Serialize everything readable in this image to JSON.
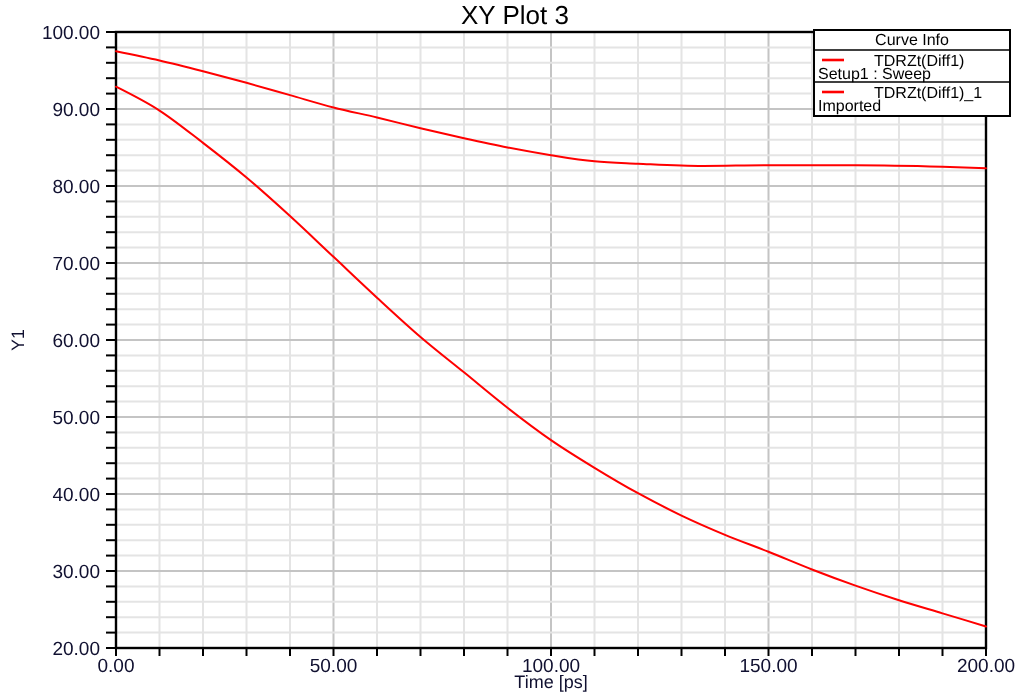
{
  "chart_data": {
    "type": "line",
    "title": "XY Plot 3",
    "xlabel": "Time [ps]",
    "ylabel": "Y1",
    "legend_title": "Curve Info",
    "legend": "top right",
    "grid": true,
    "line_style": "solid",
    "xlim": [
      0,
      200
    ],
    "ylim": [
      20,
      100
    ],
    "xticks": [
      {
        "value": 0,
        "label": "0.00"
      },
      {
        "value": 10,
        "label": null
      },
      {
        "value": 20,
        "label": null
      },
      {
        "value": 30,
        "label": null
      },
      {
        "value": 40,
        "label": null
      },
      {
        "value": 50,
        "label": "50.00"
      },
      {
        "value": 60,
        "label": null
      },
      {
        "value": 70,
        "label": null
      },
      {
        "value": 80,
        "label": null
      },
      {
        "value": 90,
        "label": null
      },
      {
        "value": 100,
        "label": "100.00"
      },
      {
        "value": 110,
        "label": null
      },
      {
        "value": 120,
        "label": null
      },
      {
        "value": 130,
        "label": null
      },
      {
        "value": 140,
        "label": null
      },
      {
        "value": 150,
        "label": "150.00"
      },
      {
        "value": 160,
        "label": null
      },
      {
        "value": 170,
        "label": null
      },
      {
        "value": 180,
        "label": null
      },
      {
        "value": 190,
        "label": null
      },
      {
        "value": 200,
        "label": "200.00"
      }
    ],
    "yticks": [
      {
        "value": 20,
        "label": "20.00"
      },
      {
        "value": 22,
        "label": null
      },
      {
        "value": 24,
        "label": null
      },
      {
        "value": 26,
        "label": null
      },
      {
        "value": 28,
        "label": null
      },
      {
        "value": 30,
        "label": "30.00"
      },
      {
        "value": 32,
        "label": null
      },
      {
        "value": 34,
        "label": null
      },
      {
        "value": 36,
        "label": null
      },
      {
        "value": 38,
        "label": null
      },
      {
        "value": 40,
        "label": "40.00"
      },
      {
        "value": 42,
        "label": null
      },
      {
        "value": 44,
        "label": null
      },
      {
        "value": 46,
        "label": null
      },
      {
        "value": 48,
        "label": null
      },
      {
        "value": 50,
        "label": "50.00"
      },
      {
        "value": 52,
        "label": null
      },
      {
        "value": 54,
        "label": null
      },
      {
        "value": 56,
        "label": null
      },
      {
        "value": 58,
        "label": null
      },
      {
        "value": 60,
        "label": "60.00"
      },
      {
        "value": 62,
        "label": null
      },
      {
        "value": 64,
        "label": null
      },
      {
        "value": 66,
        "label": null
      },
      {
        "value": 68,
        "label": null
      },
      {
        "value": 70,
        "label": "70.00"
      },
      {
        "value": 72,
        "label": null
      },
      {
        "value": 74,
        "label": null
      },
      {
        "value": 76,
        "label": null
      },
      {
        "value": 78,
        "label": null
      },
      {
        "value": 80,
        "label": "80.00"
      },
      {
        "value": 82,
        "label": null
      },
      {
        "value": 84,
        "label": null
      },
      {
        "value": 86,
        "label": null
      },
      {
        "value": 88,
        "label": null
      },
      {
        "value": 90,
        "label": "90.00"
      },
      {
        "value": 92,
        "label": null
      },
      {
        "value": 94,
        "label": null
      },
      {
        "value": 96,
        "label": null
      },
      {
        "value": 98,
        "label": null
      },
      {
        "value": 100,
        "label": "100.00"
      }
    ],
    "series": [
      {
        "name": "TDRZt(Diff1)\nSetup1 : Sweep",
        "color": "#ff0000",
        "x": [
          0,
          10,
          20,
          30,
          40,
          50,
          60,
          70,
          80,
          90,
          100,
          110,
          120,
          135,
          150,
          170,
          190,
          200
        ],
        "values": [
          97.5,
          96.3,
          94.9,
          93.4,
          91.8,
          90.2,
          88.9,
          87.5,
          86.2,
          85.0,
          84.0,
          83.2,
          82.9,
          82.6,
          82.7,
          82.7,
          82.5,
          82.3
        ]
      },
      {
        "name": "TDRZt(Diff1)_1\nImported",
        "color": "#ff0000",
        "x": [
          0,
          10,
          20,
          30,
          40,
          50,
          60,
          70,
          80,
          90,
          100,
          110,
          120,
          130,
          140,
          150,
          160,
          170,
          180,
          190,
          200
        ],
        "values": [
          92.9,
          89.8,
          85.6,
          81.1,
          76.1,
          70.8,
          65.5,
          60.4,
          55.8,
          51.2,
          47.0,
          43.4,
          40.1,
          37.2,
          34.7,
          32.5,
          30.2,
          28.1,
          26.2,
          24.5,
          22.8
        ]
      }
    ]
  }
}
